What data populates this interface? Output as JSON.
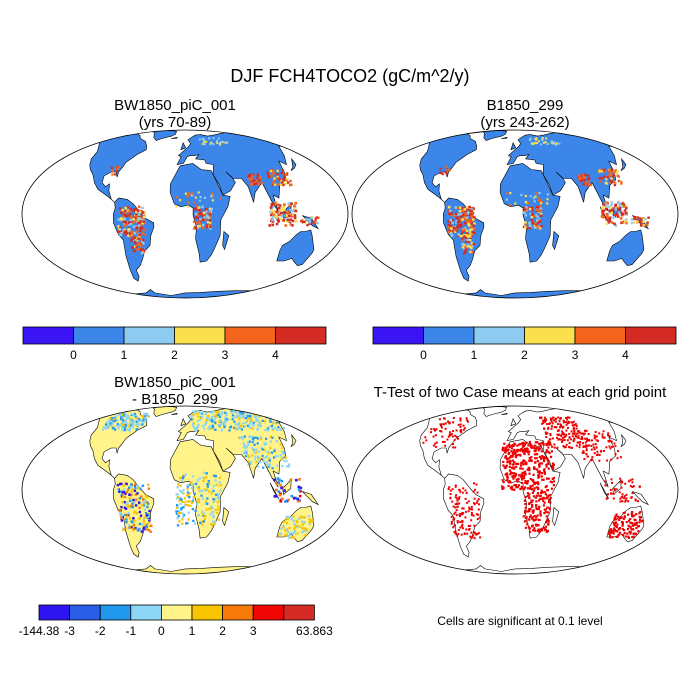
{
  "figure": {
    "title": "DJF FCH4TOCO2 (gC/m^2/y)"
  },
  "panels": [
    {
      "title_line1": "BW1850_piC_001",
      "title_line2": "(yrs 70-89)"
    },
    {
      "title_line1": "B1850_299",
      "title_line2": "(yrs 243-262)"
    },
    {
      "title_line1": "BW1850_piC_001",
      "title_line2": "- B1850_299"
    },
    {
      "title_line1": "T-Test of two Case means at each grid point",
      "title_line2": ""
    }
  ],
  "colorbar_abs": {
    "colors": [
      "#3a14f5",
      "#3d86e9",
      "#8ecbf0",
      "#fbdf4c",
      "#f3641d",
      "#d42b25"
    ],
    "labels": [
      "0",
      "1",
      "2",
      "3",
      "4"
    ]
  },
  "colorbar_diff": {
    "colors": [
      "#2d14f0",
      "#2a5de8",
      "#1f98ee",
      "#8ed6f6",
      "#fff38a",
      "#f8c400",
      "#f57a0a",
      "#f10505",
      "#d42b25"
    ],
    "labels": [
      "-144.38",
      "-3",
      "-2",
      "-1",
      "0",
      "1",
      "2",
      "3",
      "63.863"
    ]
  },
  "significance_note": "Cells are significant at 0.1 level",
  "colors": {
    "land_abs": "#3d86e9",
    "land_diff": "#fff38a",
    "significant": "#ee0000",
    "hot": "#d42b25",
    "warm": "#f3641d",
    "yellow": "#fbdf4c",
    "pale_blue": "#8ecbf0",
    "diff_blue": "#8ed6f6"
  }
}
